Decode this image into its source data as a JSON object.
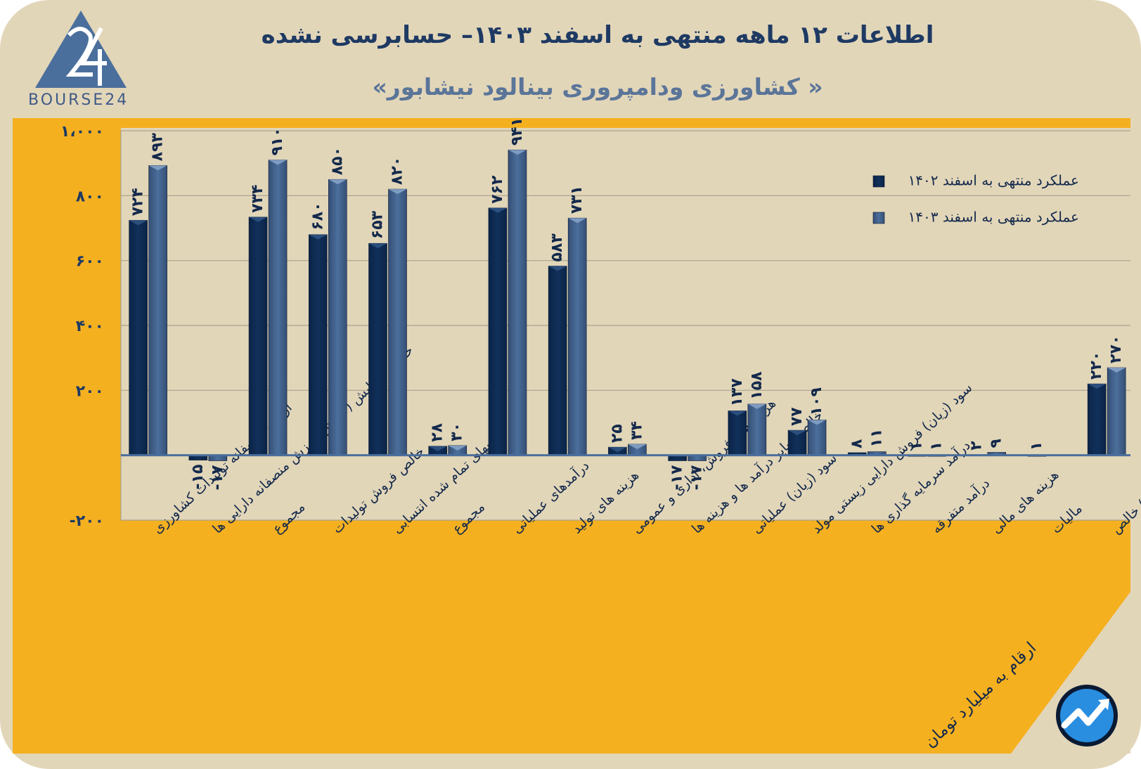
{
  "title": "اطلاعات ۱۲ ماهه منتهی به اسفند ۱۴۰۳– حسابرسی نشده",
  "subtitle": "« کشاورزی ودامپروری بینالود نیشابور»",
  "logo_text": "BOURSE24",
  "logo_mark": "24",
  "footnote": "ارقام به میلیارد تومان",
  "colors": {
    "series_1402": "#11305a",
    "series_1403": "#4b6f9c",
    "frame": "#e2d6b9",
    "band": "#f5b020",
    "text": "#13294b"
  },
  "icons": {
    "brand_logo": "triangle-24-logo-icon",
    "corner_logo": "trend-arrow-circle-icon"
  },
  "chart_data": {
    "type": "bar",
    "categories": [
      "ارزش منصفانه تولیدات کشاورزی",
      "خالص افزایش (کاهش) ارزش منصفانه دارایی ها",
      "مجموع",
      "خالص فروش تولیدات",
      "بهای تمام شده انتسابی",
      "مجموع",
      "درآمدهای عملیاتی",
      "هزینه های تولید",
      "هزینه های فروش، اداری و عمومی",
      "خالص سایر درآمد ها و هزینه ها",
      "سود (زیان) عملیاتی",
      "سود (زیان) فروش دارایی زیستی مولد",
      "درآمد سرمایه گذاری ها",
      "درآمد متفرقه",
      "هزینه های مالی",
      "مالیات",
      "سود (زیان) خالص"
    ],
    "series": [
      {
        "name": "عملکرد منتهی به اسفند ۱۴۰۲",
        "values": [
          724,
          -15,
          734,
          680,
          653,
          28,
          762,
          583,
          25,
          -17,
          137,
          77,
          8,
          1,
          2,
          1,
          220
        ],
        "labels": [
          "۷۲۴",
          "-۱۵",
          "۷۳۴",
          "۶۸۰",
          "۶۵۳",
          "۲۸",
          "۷۶۲",
          "۵۸۳",
          "۲۵",
          "-۱۷",
          "۱۳۷",
          "۷۷",
          "۸",
          "۱",
          "۲",
          "۱",
          "۲۲۰"
        ]
      },
      {
        "name": "عملکرد منتهی به اسفند ۱۴۰۳",
        "values": [
          893,
          -17,
          910,
          850,
          820,
          30,
          941,
          731,
          34,
          -17,
          158,
          109,
          11,
          1,
          9,
          null,
          270
        ],
        "labels": [
          "۸۹۳",
          "-۱۷",
          "۹۱۰",
          "۸۵۰",
          "۸۲۰",
          "۳۰",
          "۹۴۱",
          "۷۳۱",
          "۳۴",
          "-۱۷",
          "۱۵۸",
          "۱۰۹",
          "۱۱",
          "۱",
          "۹",
          "",
          "۲۷۰"
        ]
      }
    ],
    "y_ticks": [
      1000,
      800,
      600,
      400,
      200,
      -200
    ],
    "y_tick_labels": [
      "۱،۰۰۰",
      "۸۰۰",
      "۶۰۰",
      "۴۰۰",
      "۲۰۰",
      "-۲۰۰"
    ],
    "ylim": [
      -200,
      1000
    ],
    "grid": true,
    "legend_position": "top-right",
    "xlabel": "",
    "ylabel": ""
  }
}
